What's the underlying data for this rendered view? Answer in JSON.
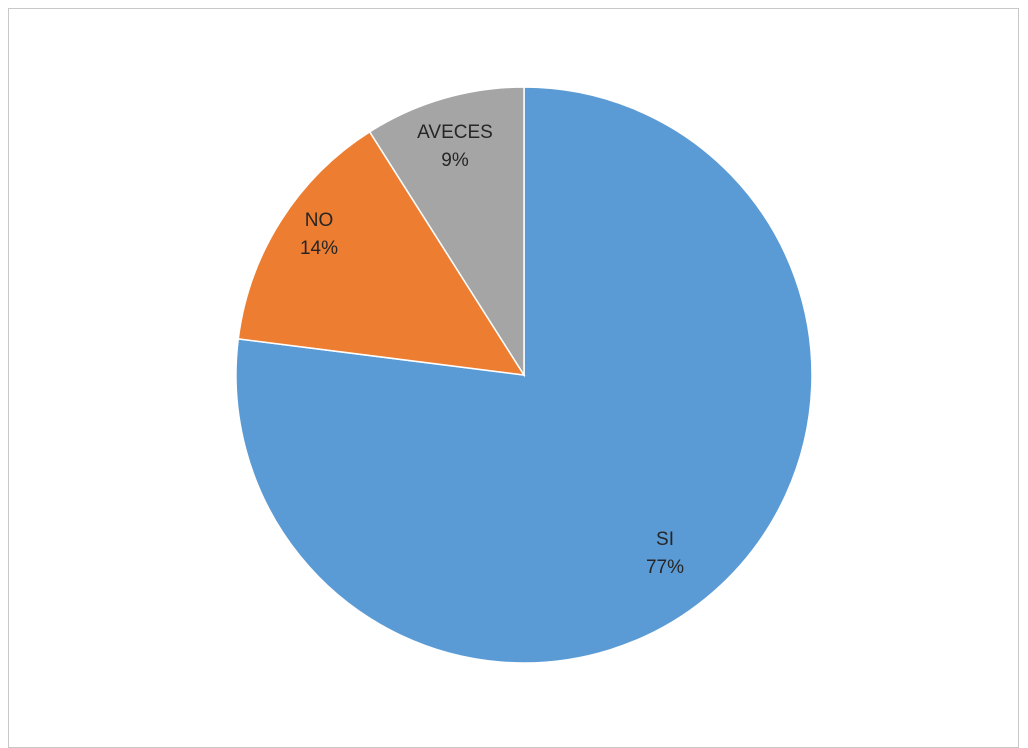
{
  "chart_data": {
    "type": "pie",
    "title": "",
    "slices": [
      {
        "label": "SI",
        "value": 77,
        "value_label": "77%",
        "color": "#5B9BD5"
      },
      {
        "label": "NO",
        "value": 14,
        "value_label": "14%",
        "color": "#ED7D31"
      },
      {
        "label": "AVECES",
        "value": 9,
        "value_label": "9%",
        "color": "#A5A5A5"
      }
    ],
    "legend": "none",
    "data_labels": "inside"
  }
}
